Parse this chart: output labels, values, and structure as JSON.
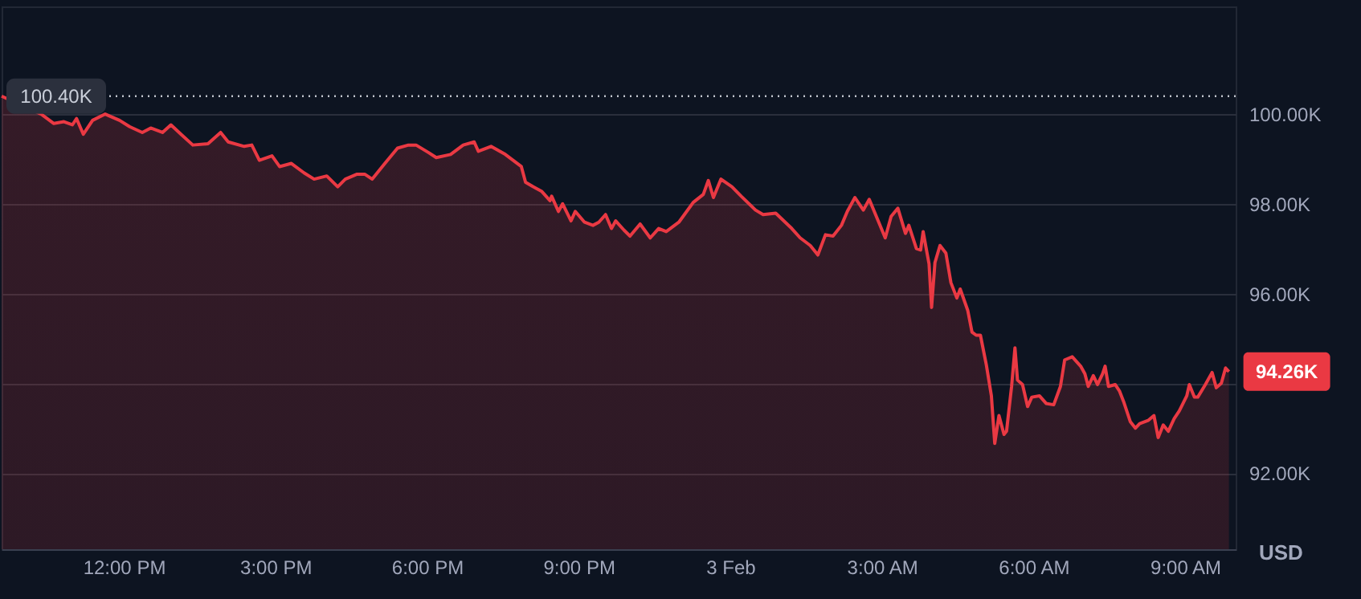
{
  "chart_data": {
    "type": "area",
    "ylabel": "USD",
    "x": [
      "--02-02T09:35",
      "--02-02T10:22",
      "--02-02T10:37",
      "--02-02T10:49",
      "--02-02T10:59",
      "--02-02T11:04",
      "--02-02T11:12",
      "--02-02T11:23",
      "--02-02T11:38",
      "--02-02T11:55",
      "--02-02T12:07",
      "--02-02T12:22",
      "--02-02T12:32",
      "--02-02T12:46",
      "--02-02T12:56",
      "--02-02T13:08",
      "--02-02T13:22",
      "--02-02T13:40",
      "--02-02T13:55",
      "--02-02T14:04",
      "--02-02T14:23",
      "--02-02T14:32",
      "--02-02T14:41",
      "--02-02T14:56",
      "--02-02T15:05",
      "--02-02T15:19",
      "--02-02T15:34",
      "--02-02T15:46",
      "--02-02T16:01",
      "--02-02T16:14",
      "--02-02T16:23",
      "--02-02T16:37",
      "--02-02T16:46",
      "--02-02T16:55",
      "--02-02T17:10",
      "--02-02T17:25",
      "--02-02T17:38",
      "--02-02T17:47",
      "--02-02T18:02",
      "--02-02T18:11",
      "--02-02T18:28",
      "--02-02T18:43",
      "--02-02T18:56",
      "--02-02T19:01",
      "--02-02T19:16",
      "--02-02T19:33",
      "--02-02T19:52",
      "--02-02T19:57",
      "--02-02T20:06",
      "--02-02T20:16",
      "--02-02T20:26",
      "--02-02T20:28",
      "--02-02T20:36",
      "--02-02T20:41",
      "--02-02T20:51",
      "--02-02T20:56",
      "--02-02T21:07",
      "--02-02T21:17",
      "--02-02T21:24",
      "--02-02T21:32",
      "--02-02T21:39",
      "--02-02T21:44",
      "--02-02T21:54",
      "--02-02T22:01",
      "--02-02T22:13",
      "--02-02T22:25",
      "--02-02T22:35",
      "--02-02T22:44",
      "--02-02T22:59",
      "--02-02T23:16",
      "--02-02T23:28",
      "--02-02T23:34",
      "--02-02T23:40",
      "--02-02T23:49",
      "--02-03T00:02",
      "--02-03T00:13",
      "--02-03T00:30",
      "--02-03T00:39",
      "--02-03T00:54",
      "--02-03T01:13",
      "--02-03T01:23",
      "--02-03T01:35",
      "--02-03T01:44",
      "--02-03T01:53",
      "--02-03T02:02",
      "--02-03T02:12",
      "--02-03T02:19",
      "--02-03T02:28",
      "--02-03T02:38",
      "--02-03T02:45",
      "--02-03T03:04",
      "--02-03T03:11",
      "--02-03T03:19",
      "--02-03T03:28",
      "--02-03T03:32",
      "--02-03T03:41",
      "--02-03T03:46",
      "--02-03T03:49",
      "--02-03T03:52",
      "--02-03T03:56",
      "--02-03T03:59",
      "--02-03T04:03",
      "--02-03T04:09",
      "--02-03T04:16",
      "--02-03T04:22",
      "--02-03T04:29",
      "--02-03T04:33",
      "--02-03T04:42",
      "--02-03T04:47",
      "--02-03T04:52",
      "--02-03T04:57",
      "--02-03T05:04",
      "--02-03T05:10",
      "--02-03T05:14",
      "--02-03T05:19",
      "--02-03T05:25",
      "--02-03T05:28",
      "--02-03T05:34",
      "--02-03T05:38",
      "--02-03T05:41",
      "--02-03T05:47",
      "--02-03T05:53",
      "--02-03T05:58",
      "--02-03T06:07",
      "--02-03T06:15",
      "--02-03T06:24",
      "--02-03T06:32",
      "--02-03T06:37",
      "--02-03T06:46",
      "--02-03T06:56",
      "--02-03T07:01",
      "--02-03T07:05",
      "--02-03T07:11",
      "--02-03T07:16",
      "--02-03T07:22",
      "--02-03T07:25",
      "--02-03T07:29",
      "--02-03T07:37",
      "--02-03T07:42",
      "--02-03T07:47",
      "--02-03T07:55",
      "--02-03T08:01",
      "--02-03T08:06",
      "--02-03T08:16",
      "--02-03T08:23",
      "--02-03T08:28",
      "--02-03T08:34",
      "--02-03T08:40",
      "--02-03T08:47",
      "--02-03T08:53",
      "--02-03T09:02",
      "--02-03T09:05",
      "--02-03T09:11",
      "--02-03T09:15",
      "--02-03T09:24",
      "--02-03T09:32",
      "--02-03T09:37",
      "--02-03T09:43",
      "--02-03T09:48",
      "--02-03T09:52"
    ],
    "series": [
      {
        "color": "#ea3943",
        "values": [
          100.4,
          100.0,
          99.79,
          99.83,
          99.76,
          99.9,
          99.55,
          99.86,
          100.0,
          99.86,
          99.72,
          99.59,
          99.69,
          99.59,
          99.76,
          99.55,
          99.31,
          99.34,
          99.59,
          99.38,
          99.28,
          99.31,
          98.97,
          99.07,
          98.83,
          98.9,
          98.69,
          98.55,
          98.62,
          98.38,
          98.55,
          98.66,
          98.66,
          98.55,
          98.9,
          99.24,
          99.31,
          99.31,
          99.14,
          99.03,
          99.1,
          99.31,
          99.38,
          99.17,
          99.28,
          99.1,
          98.83,
          98.48,
          98.38,
          98.28,
          98.07,
          98.17,
          97.83,
          98.0,
          97.62,
          97.83,
          97.59,
          97.52,
          97.59,
          97.76,
          97.45,
          97.62,
          97.41,
          97.28,
          97.55,
          97.24,
          97.45,
          97.38,
          97.59,
          98.03,
          98.21,
          98.52,
          98.14,
          98.55,
          98.38,
          98.17,
          97.86,
          97.76,
          97.79,
          97.45,
          97.24,
          97.07,
          96.86,
          97.31,
          97.28,
          97.52,
          97.83,
          98.14,
          97.86,
          98.1,
          97.24,
          97.72,
          97.9,
          97.34,
          97.52,
          97.0,
          96.97,
          97.38,
          97.07,
          96.66,
          95.69,
          96.69,
          97.07,
          96.9,
          96.24,
          95.9,
          96.1,
          95.62,
          95.14,
          95.07,
          95.07,
          94.41,
          93.72,
          92.66,
          93.28,
          92.86,
          92.93,
          93.93,
          94.79,
          94.07,
          93.97,
          93.48,
          93.69,
          93.72,
          93.55,
          93.52,
          93.93,
          94.52,
          94.59,
          94.38,
          94.21,
          93.93,
          94.17,
          93.97,
          94.21,
          94.38,
          93.93,
          93.97,
          93.83,
          93.59,
          93.14,
          93.0,
          93.1,
          93.17,
          93.28,
          92.79,
          93.07,
          92.93,
          93.21,
          93.38,
          93.72,
          93.97,
          93.69,
          93.69,
          93.97,
          94.24,
          93.9,
          94.0,
          94.34,
          94.26
        ]
      }
    ],
    "xlim": [
      "--02-02T09:35",
      "--02-03T10:00"
    ],
    "xticks": [
      {
        "value": "--02-02T12:00",
        "label": "12:00 PM"
      },
      {
        "value": "--02-02T15:00",
        "label": "3:00 PM"
      },
      {
        "value": "--02-02T18:00",
        "label": "6:00 PM"
      },
      {
        "value": "--02-02T21:00",
        "label": "9:00 PM"
      },
      {
        "value": "--02-03T00:00",
        "label": "3 Feb"
      },
      {
        "value": "--02-03T03:00",
        "label": "3:00 AM"
      },
      {
        "value": "--02-03T06:00",
        "label": "6:00 AM"
      },
      {
        "value": "--02-03T09:00",
        "label": "9:00 AM"
      }
    ],
    "ylim": [
      90.3,
      102.4
    ],
    "yticks": [
      {
        "value": 92,
        "label": "92.00K"
      },
      {
        "value": 94,
        "label": null
      },
      {
        "value": 96,
        "label": "96.00K"
      },
      {
        "value": 98,
        "label": "98.00K"
      },
      {
        "value": 100,
        "label": "100.00K"
      }
    ],
    "grid": "y",
    "ref_lines": [
      {
        "axis": "y",
        "value": 100.4,
        "label": "100.40K",
        "line_style": "dotted",
        "color": "#c0c4cc"
      }
    ],
    "annotations": [
      {
        "text": "94.26K",
        "x": "--02-03T09:52",
        "y": 94.26
      }
    ]
  }
}
